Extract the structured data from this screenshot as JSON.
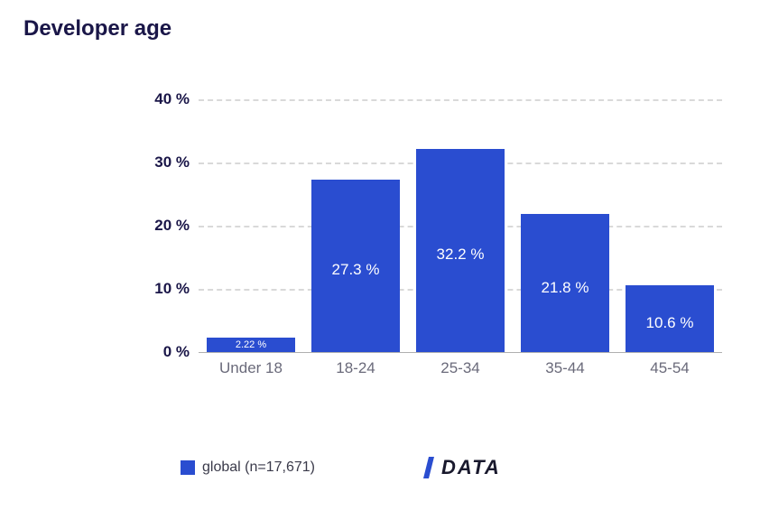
{
  "title": "Developer age",
  "chart": {
    "type": "bar",
    "categories": [
      "Under 18",
      "18-24",
      "25-34",
      "35-44",
      "45-54"
    ],
    "values": [
      2.22,
      27.3,
      32.2,
      21.8,
      10.6
    ],
    "value_labels": [
      "2.22 %",
      "27.3 %",
      "32.2 %",
      "21.8 %",
      "10.6 %"
    ],
    "bar_color": "#2a4dd0",
    "grid_color": "#d9d9d9",
    "axis_color": "#b0b0b0",
    "title_color": "#1a1648",
    "xlabel_color": "#6a6a7a",
    "background_color": "#ffffff",
    "ylim": [
      0,
      40
    ],
    "yticks": [
      0,
      10,
      20,
      30,
      40
    ],
    "ytick_labels": [
      "0 %",
      "10 %",
      "20 %",
      "30 %",
      "40 %"
    ],
    "bar_width_ratio": 0.84,
    "title_fontsize": 24,
    "ytick_fontsize": 17,
    "xlabel_fontsize": 17,
    "value_label_fontsize": 17,
    "small_value_label_fontsize": 11,
    "small_value_threshold": 5
  },
  "legend": {
    "swatch_color": "#2a4dd0",
    "label": "global (n=17,671)"
  },
  "logo": {
    "text": "DATA",
    "slash_color_1": "#2a4dd0",
    "slash_color_2": "#19192d",
    "text_color": "#19192d"
  }
}
